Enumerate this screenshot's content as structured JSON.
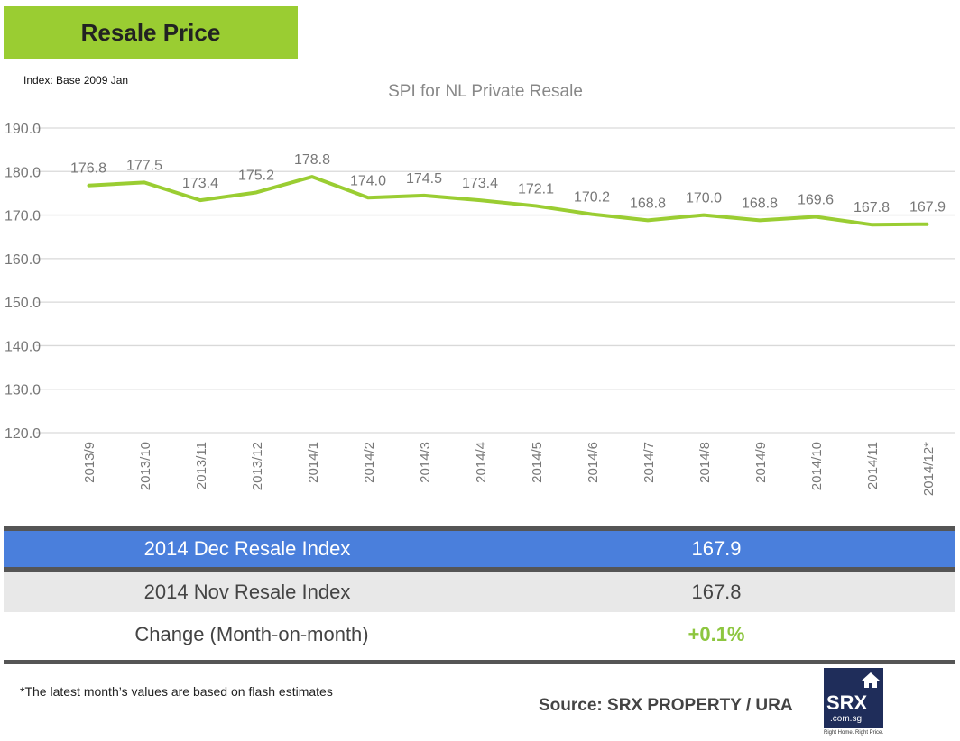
{
  "header": {
    "title": "Resale Price",
    "index_note": "Index: Base 2009 Jan"
  },
  "chart_data": {
    "type": "line",
    "title": "SPI for NL Private Resale",
    "categories": [
      "2013/9",
      "2013/10",
      "2013/11",
      "2013/12",
      "2014/1",
      "2014/2",
      "2014/3",
      "2014/4",
      "2014/5",
      "2014/6",
      "2014/7",
      "2014/8",
      "2014/9",
      "2014/10",
      "2014/11",
      "2014/12*"
    ],
    "values": [
      176.8,
      177.5,
      173.4,
      175.2,
      178.8,
      174.0,
      174.5,
      173.4,
      172.1,
      170.2,
      168.8,
      170.0,
      168.8,
      169.6,
      167.8,
      167.9
    ],
    "ylim": [
      120,
      190
    ],
    "yticks": [
      "120.0",
      "130.0",
      "140.0",
      "150.0",
      "160.0",
      "170.0",
      "180.0",
      "190.0"
    ],
    "grid": true,
    "line_color": "#9acd32"
  },
  "table": {
    "rows": [
      {
        "label": "2014 Dec Resale Index",
        "value": "167.9"
      },
      {
        "label": "2014 Nov Resale Index",
        "value": "167.8"
      },
      {
        "label": "Change (Month-on-month)",
        "value": "+0.1%"
      }
    ],
    "highlight_color": "#4a7fdc",
    "positive_color": "#8dc63f"
  },
  "footer": {
    "note": "*The latest month’s values are based on flash estimates",
    "source": "Source: SRX PROPERTY / URA",
    "logo_text": "SRX",
    "logo_sub": ".com.sg",
    "logo_tagline": "Right Home. Right Price."
  }
}
